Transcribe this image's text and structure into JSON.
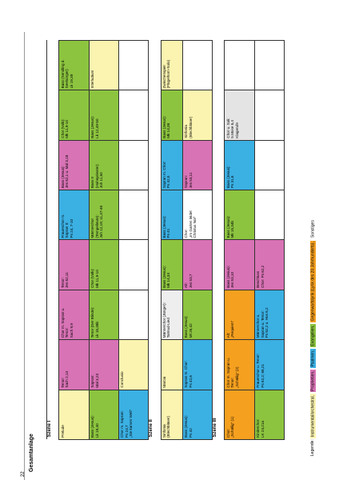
{
  "page_number": "22",
  "title": "Gesamtanlage",
  "scenes": [
    {
      "name": "Szene I",
      "rows": [
        [
          {
            "text": "Prelude",
            "color": "#fbf4b0"
          },
          {
            "text": "Tenor:\nSach 2,14",
            "color": "#d873b5"
          },
          {
            "text": "Chor m. Sopran u.\nTenor:\nSach 9,9",
            "color": "#d873b5"
          },
          {
            "text": "Tenor:\nJes 62,11",
            "color": "#d873b5"
          },
          {
            "text": "Frauenchor m.\nSopran II:\nPs 24, 7-10",
            "color": "#3bb0e3"
          },
          {
            "text": "Bass (Jesus):\nJes 62,1 u. Mal 3,18",
            "color": "#d873b5"
          },
          {
            "text": "Chor (Volk):\nMk 11,9-10",
            "color": "#8cc43f"
          },
          {
            "text": "Bass (Sendling d.\nSeelsorger):\nLk 19,39",
            "color": "#8cc43f"
          }
        ],
        [
          {
            "text": "Bass (Jesus):\nLk 19,40",
            "color": "#8cc43f"
          },
          {
            "text": "Sopran:\nMal 3,23",
            "color": "#d873b5"
          },
          {
            "text": "Tenor (Der Blinde):\nLk 18,38b",
            "color": "#8cc43f"
          },
          {
            "text": "Chor (Volk):\nMk 11,9-10",
            "color": "#8cc43f"
          },
          {
            "text": "Männerchor\n(Tempelleute):\nJoh 12,19; 11,47-48",
            "color": "#8cc43f"
          },
          {
            "text": "Bass II\n(Hohepriester):\nJoh 11,50",
            "color": "#8cc43f"
          },
          {
            "text": "Bass (Jesus):\nLk 12,49-50",
            "color": "#8cc43f"
          },
          {
            "text": "Interludium",
            "color": "#fbf4b0"
          }
        ],
        [
          {
            "text": "Chor m. Sopran:\nPs 24,7\n„Sie kamen Welt\"",
            "color": "#3bb0e3"
          },
          {
            "text": "Conclusio",
            "color": "#fbf4b0"
          }
        ]
      ]
    },
    {
      "name": "Szene II",
      "rows": [
        [
          {
            "text": "Sinfonia\n(Blechbläser)",
            "color": "#fbf4b0"
          },
          {
            "text": "Marcia",
            "color": "#fbf4b0"
          },
          {
            "text": "Männerchor (Jünger):\nTalmud-Lied",
            "color": "#eeeeee"
          },
          {
            "text": "Bass (Jesus):\nMk 14,34",
            "color": "#8cc43f"
          },
          {
            "text": "Bass (Jesus):\nPs 41",
            "color": "#3bb0e3"
          },
          {
            "text": "Sopran m. Chor:\nPs 42,5",
            "color": "#3bb0e3"
          },
          {
            "text": "Bass (Jesus):\nMk 14,36",
            "color": "#8cc43f"
          },
          {
            "text": "Zwischenspiel\n(Flügelhorn-Solo)",
            "color": "#fbf4b0"
          }
        ],
        [
          {
            "text": "Bass (Jesus):\nPs 42",
            "color": "#3bb0e3"
          },
          {
            "text": "Sopran m. Chor:\nPs 42,6",
            "color": "#3bb0e3"
          },
          {
            "text": "Bass (Jesus):\nMt 26,42",
            "color": "#8cc43f"
          },
          {
            "text": "Alt:\nJes 53,7",
            "color": "#d873b5"
          },
          {
            "text": "Chor:\n„Im Garten leidet\nChristus Not\"",
            "color": "#ffffff"
          },
          {
            "text": "Sopran:\nJes 53,11",
            "color": "#d873b5"
          },
          {
            "text": "Sinfonia\n(Blechbläser)",
            "color": "#fbf4b0"
          }
        ]
      ]
    },
    {
      "name": "Szene III",
      "rows": [
        [
          {
            "text": "Chor:\n„Schällig\" (1)",
            "color": "#f6a01f"
          },
          {
            "text": "Chor m. Sopran u.\nTenor:\n„Schällig\" (2)",
            "color": "#f6a01f"
          },
          {
            "text": "Alt:\n„Requiem\"",
            "color": "#f6a01f"
          },
          {
            "text": "Bass (Jesus):\nJes 53,10",
            "color": "#d873b5"
          },
          {
            "text": "Bass (Jesus):\nMk 15,34b",
            "color": "#8cc43f"
          },
          {
            "text": "Bass (Jesus):\nPs 31,6",
            "color": "#3bb0e3"
          },
          {
            "text": "Chor u. Soli:\n5.Mose 6,4\nKlagerufe",
            "color": "#e4e4e4"
          }
        ],
        [
          {
            "text": "Kinderchor:\nLK 24,21a",
            "color": "#8cc43f"
          },
          {
            "text": "Frauenchor u. Tenor:\nPs 62,2; 68,21",
            "color": "#3bb0e3"
          },
          {
            "text": "Männerchor u.\nSopran u. Tenor:\nPs 62,2 u. Hos 6,2",
            "color": "#3bb0e3"
          },
          {
            "text": "Beschluss\nChor: Ps 62,2",
            "color": "#d873b5"
          }
        ]
      ]
    }
  ],
  "legend": {
    "label": "Legende:",
    "items": [
      {
        "text": "Instrumental/orchestral,",
        "color": "#fbf4b0"
      },
      {
        "text": "Prophetien,",
        "color": "#d873b5"
      },
      {
        "text": "Psalmen,",
        "color": "#3bb0e3"
      },
      {
        "text": "Evangelien,",
        "color": "#8cc43f"
      },
      {
        "text": "Gegenwartslyrik (Lyrik des 20.Jahrhunderts),",
        "color": "#f6a01f"
      },
      {
        "text": "Sonstiges",
        "color": "#ffffff"
      }
    ]
  }
}
